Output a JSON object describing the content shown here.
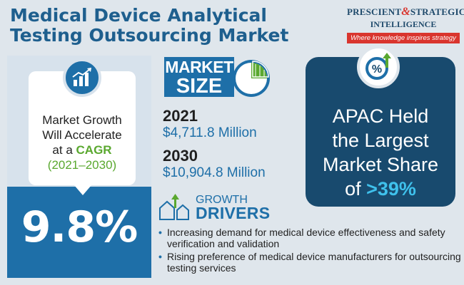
{
  "header": {
    "title": "Medical Device Analytical Testing Outsourcing Market"
  },
  "logo": {
    "line1_a": "PRESCIENT",
    "amp": "&",
    "line1_b": "STRATEGIC",
    "line2": "INTELLIGENCE",
    "tagline": "Where knowledge inspires strategy"
  },
  "growth": {
    "line1": "Market Growth",
    "line2": "Will Accelerate",
    "line3_prefix": "at a ",
    "cagr_label": "CAGR",
    "period": "(2021–2030)",
    "value": "9.8%"
  },
  "market_size": {
    "label_a": "MARKET",
    "label_b": "SIZE",
    "entries": [
      {
        "year": "2021",
        "amount": "$4,711.8 Million"
      },
      {
        "year": "2030",
        "amount": "$10,904.8 Million"
      }
    ]
  },
  "apac": {
    "line1": "APAC Held",
    "line2": "the Largest",
    "line3": "Market Share",
    "line4_prefix": "of ",
    "share": ">39%"
  },
  "drivers": {
    "label_a": "GROWTH",
    "label_b": "DRIVERS",
    "items": [
      "Increasing demand for medical device effectiveness and safety verification and validation",
      "Rising preference of medical device manufacturers for outsourcing testing services"
    ]
  },
  "colors": {
    "primary": "#1e6fa8",
    "dark": "#184a6e",
    "accent_green": "#5aa82f",
    "accent_red": "#d9352e",
    "accent_cyan": "#3fc1ec",
    "background": "#dfe6ec"
  },
  "icons": {
    "growth": "bar-chart-up-icon",
    "market_size": "pie-chart-icon",
    "apac": "percent-up-icon",
    "drivers": "houses-arrow-icon"
  }
}
